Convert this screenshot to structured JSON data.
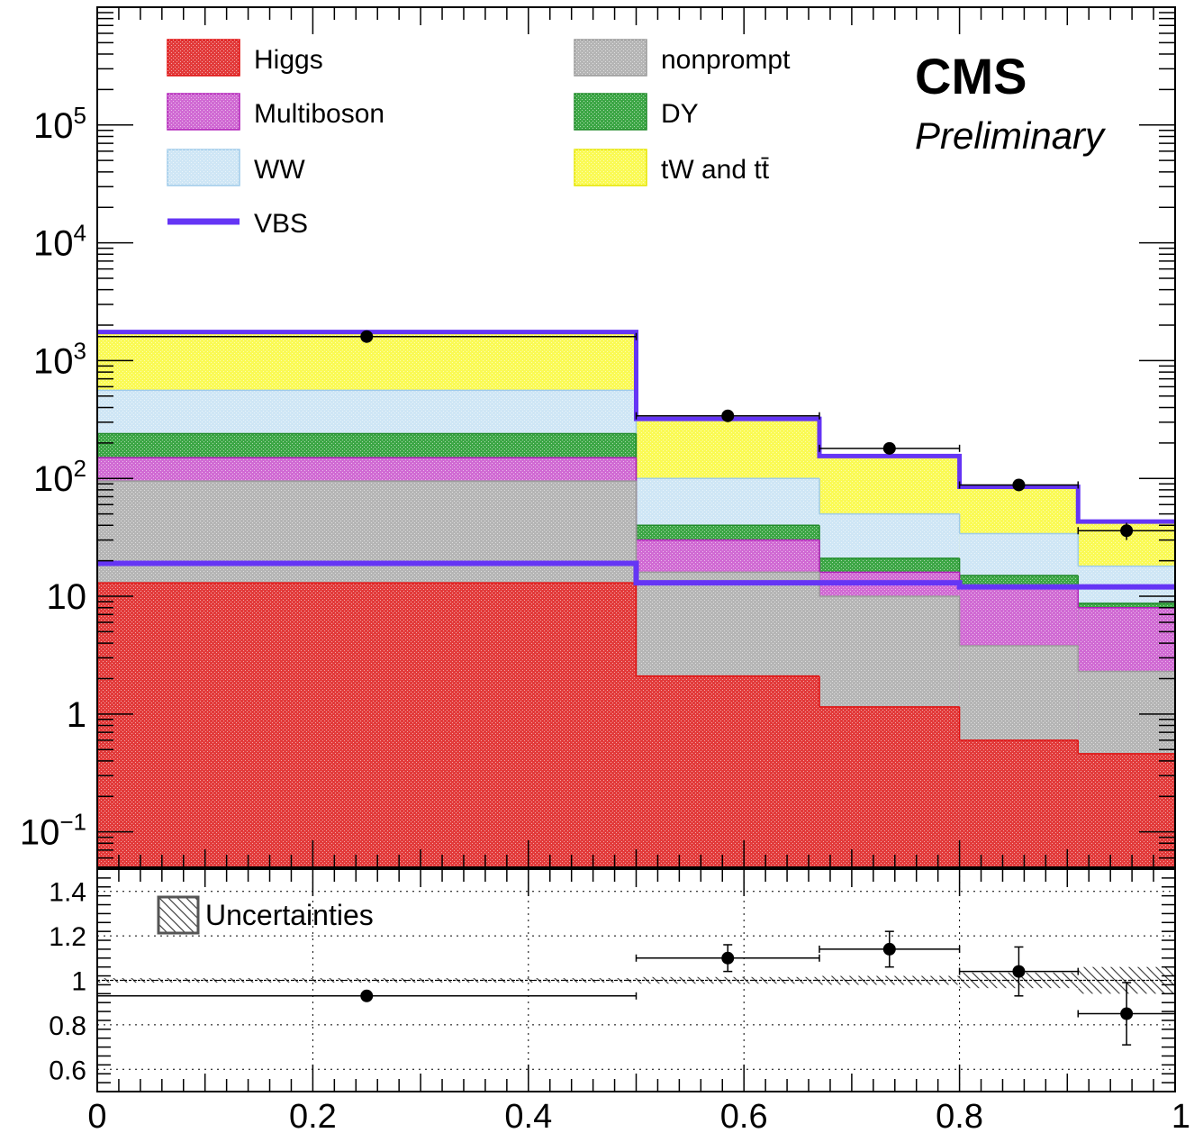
{
  "chart_data": {
    "type": "bar",
    "stacked": true,
    "main_panel": {
      "y_scale": "log",
      "ylim": [
        0.05,
        1000000
      ],
      "y_tick_labels": [
        "10⁻¹",
        "1",
        "10",
        "10²",
        "10³",
        "10⁴",
        "10⁵"
      ],
      "bin_edges": [
        0,
        0.5,
        0.67,
        0.8,
        0.91,
        1
      ],
      "series": [
        {
          "name": "Higgs",
          "key": "higgs",
          "color": "#e23a3a",
          "edge": "#e01010",
          "cumulative": [
            13,
            2.1,
            1.15,
            0.6,
            0.46
          ]
        },
        {
          "name": "nonprompt",
          "key": "nonprompt",
          "color": "#b5b5b5",
          "edge": "#9a9a9a",
          "cumulative": [
            95,
            16,
            10,
            3.8,
            2.3
          ]
        },
        {
          "name": "Multiboson",
          "key": "multiboson",
          "color": "#d06ad3",
          "edge": "#b020b8",
          "cumulative": [
            150,
            30,
            16,
            12,
            8
          ]
        },
        {
          "name": "DY",
          "key": "dy",
          "color": "#3ca645",
          "edge": "#1e8a28",
          "cumulative": [
            240,
            40,
            21,
            15,
            8.7
          ]
        },
        {
          "name": "WW",
          "key": "ww",
          "color": "#cfe6f5",
          "edge": "#9fcbea",
          "cumulative": [
            560,
            100,
            50,
            34,
            18
          ]
        },
        {
          "name": "tW and tt̄",
          "key": "top",
          "color": "#fafa55",
          "edge": "#e6e600",
          "cumulative": [
            1750,
            320,
            155,
            85,
            43
          ]
        }
      ],
      "vbs": {
        "name": "VBS",
        "color": "#6535f5",
        "values": [
          19,
          13,
          13,
          12,
          12
        ]
      },
      "data": {
        "x": [
          0.25,
          0.585,
          0.735,
          0.855,
          0.955
        ],
        "y": [
          1600,
          340,
          180,
          88,
          36
        ],
        "yerr_up": [
          40,
          18,
          13,
          9,
          6
        ],
        "yerr_down": [
          40,
          18,
          13,
          9,
          6
        ],
        "xerr": [
          [
            0,
            0.5
          ],
          [
            0.5,
            0.67
          ],
          [
            0.67,
            0.8
          ],
          [
            0.8,
            0.91
          ],
          [
            0.91,
            1
          ]
        ]
      }
    },
    "ratio_panel": {
      "ylim": [
        0.5,
        1.5
      ],
      "y_ticks": [
        0.6,
        0.8,
        1,
        1.2,
        1.4
      ],
      "y_tick_labels": [
        "0.6",
        "0.8",
        "1",
        "1.2",
        "1.4"
      ],
      "uncertainty_bands": [
        0.01,
        0.015,
        0.02,
        0.035,
        0.06
      ],
      "points": {
        "x": [
          0.25,
          0.585,
          0.735,
          0.855,
          0.955
        ],
        "y": [
          0.93,
          1.1,
          1.14,
          1.04,
          0.85
        ],
        "yerr": [
          0.0,
          0.06,
          0.08,
          0.11,
          0.14
        ],
        "xerr": [
          [
            0,
            0.5
          ],
          [
            0.5,
            0.67
          ],
          [
            0.67,
            0.8
          ],
          [
            0.8,
            0.91
          ],
          [
            0.91,
            1
          ]
        ]
      },
      "legend_label": "Uncertainties"
    },
    "x_axis": {
      "xlim": [
        0,
        1
      ],
      "ticks": [
        0,
        0.2,
        0.4,
        0.6,
        0.8,
        1
      ],
      "tick_labels": [
        "0",
        "0.2",
        "0.4",
        "0.6",
        "0.8",
        "1"
      ]
    },
    "legend": {
      "placement": "top-left",
      "entries": [
        "Higgs",
        "nonprompt",
        "Multiboson",
        "DY",
        "WW",
        "tW and tt̄",
        "VBS"
      ]
    },
    "grid": {
      "main": false,
      "ratio": true
    }
  },
  "labels": {
    "cms": "CMS",
    "preliminary": "Preliminary",
    "legend_higgs": "Higgs",
    "legend_nonprompt": "nonprompt",
    "legend_multiboson": "Multiboson",
    "legend_dy": "DY",
    "legend_ww": "WW",
    "legend_top": "tW and tt̄",
    "legend_vbs": "VBS",
    "legend_unc": "Uncertainties"
  }
}
